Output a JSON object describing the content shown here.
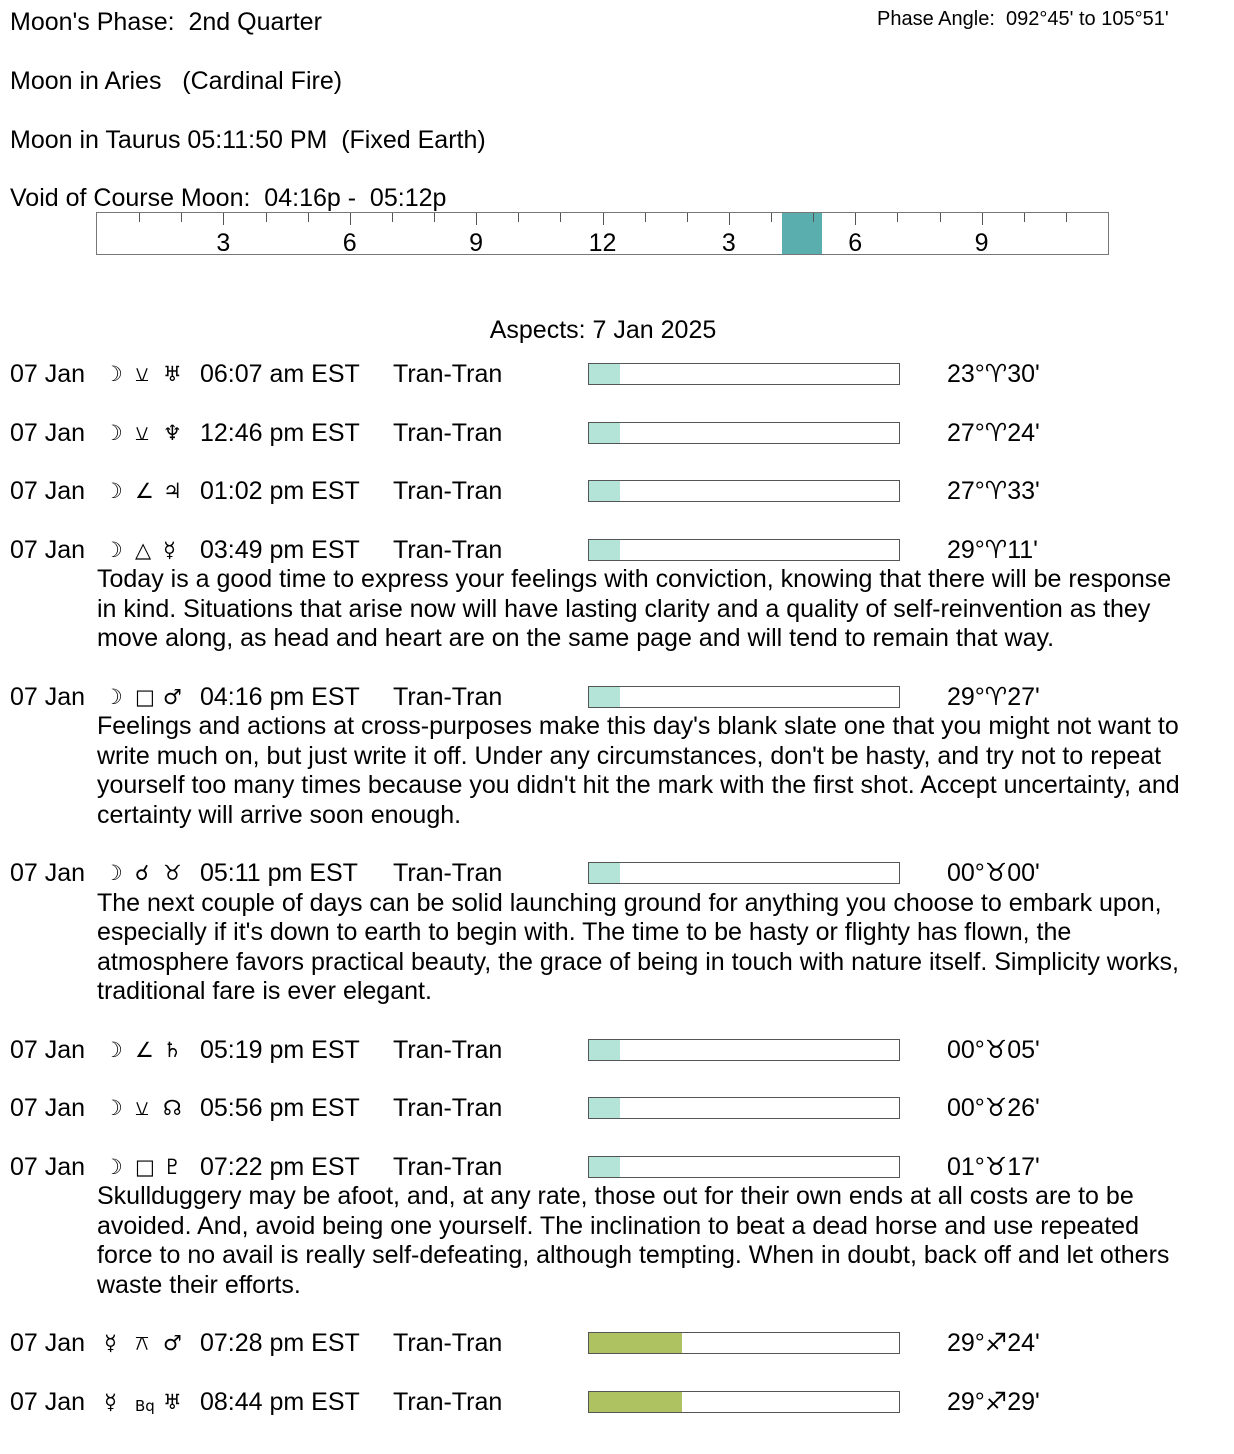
{
  "header": {
    "moon_phase": "Moon's Phase:  2nd Quarter",
    "phase_angle": "Phase Angle:  092°45' to 105°51'",
    "moon_sign_1": "Moon in Aries   (Cardinal Fire)",
    "moon_sign_2": "Moon in Taurus 05:11:50 PM  (Fixed Earth)",
    "void_of_course": "Void of Course Moon:  04:16p -  05:12p"
  },
  "timeline": {
    "hours": 24,
    "labels": [
      "3",
      "6",
      "9",
      "12",
      "3",
      "6",
      "9"
    ],
    "label_hours": [
      3,
      6,
      9,
      12,
      15,
      18,
      21
    ],
    "void_start_hour": 16.27,
    "void_end_hour": 17.2,
    "highlight_color": "#5aaeae"
  },
  "aspects_title": "Aspects: 7 Jan 2025",
  "colors": {
    "moon_bar": "#b4e4d7",
    "mercury_bar": "#aec262"
  },
  "aspects": [
    {
      "date": "07 Jan",
      "p1": "☽",
      "aspect": "⚺",
      "p2": "♅",
      "time": "06:07 am EST",
      "type": "Tran-Tran",
      "strength": 0.1,
      "bar": "moon_bar",
      "pos": "23°♈︎30'",
      "desc": ""
    },
    {
      "date": "07 Jan",
      "p1": "☽",
      "aspect": "⚺",
      "p2": "♆",
      "time": "12:46 pm EST",
      "type": "Tran-Tran",
      "strength": 0.1,
      "bar": "moon_bar",
      "pos": "27°♈︎24'",
      "desc": ""
    },
    {
      "date": "07 Jan",
      "p1": "☽",
      "aspect": "∠",
      "p2": "♃",
      "time": "01:02 pm EST",
      "type": "Tran-Tran",
      "strength": 0.1,
      "bar": "moon_bar",
      "pos": "27°♈︎33'",
      "desc": ""
    },
    {
      "date": "07 Jan",
      "p1": "☽",
      "aspect": "△",
      "p2": "☿",
      "time": "03:49 pm EST",
      "type": "Tran-Tran",
      "strength": 0.1,
      "bar": "moon_bar",
      "pos": "29°♈︎11'",
      "desc": "Today is a good time to express your feelings with conviction, knowing that there will be response in kind. Situations that arise now will have lasting clarity and a quality of self-reinvention as they move along, as head and heart are on the same page and will tend to remain that way."
    },
    {
      "date": "07 Jan",
      "p1": "☽",
      "aspect": "□",
      "p2": "♂",
      "time": "04:16 pm EST",
      "type": "Tran-Tran",
      "strength": 0.1,
      "bar": "moon_bar",
      "pos": "29°♈︎27'",
      "desc": "Feelings and actions at cross-purposes make this day's blank slate one that you might not want to write much on, but just write it off. Under any circumstances, don't be hasty, and try not to repeat yourself too many times because you didn't hit the mark with the first shot. Accept uncertainty, and certainty will arrive soon enough."
    },
    {
      "date": "07 Jan",
      "p1": "☽",
      "aspect": "☌",
      "p2": "♉︎",
      "time": "05:11 pm EST",
      "type": "Tran-Tran",
      "strength": 0.1,
      "bar": "moon_bar",
      "pos": "00°♉︎00'",
      "desc": "The next couple of days can be solid launching ground for anything you choose to embark upon, especially if it's down to earth to begin with. The time to be hasty or flighty has flown, the atmosphere favors practical beauty, the grace of being in touch with nature itself. Simplicity works, traditional fare is ever elegant."
    },
    {
      "date": "07 Jan",
      "p1": "☽",
      "aspect": "∠",
      "p2": "♄",
      "time": "05:19 pm EST",
      "type": "Tran-Tran",
      "strength": 0.1,
      "bar": "moon_bar",
      "pos": "00°♉︎05'",
      "desc": ""
    },
    {
      "date": "07 Jan",
      "p1": "☽",
      "aspect": "⚺",
      "p2": "☊",
      "time": "05:56 pm EST",
      "type": "Tran-Tran",
      "strength": 0.1,
      "bar": "moon_bar",
      "pos": "00°♉︎26'",
      "desc": ""
    },
    {
      "date": "07 Jan",
      "p1": "☽",
      "aspect": "□",
      "p2": "♇",
      "time": "07:22 pm EST",
      "type": "Tran-Tran",
      "strength": 0.1,
      "bar": "moon_bar",
      "pos": "01°♉︎17'",
      "desc": "Skullduggery may be afoot, and, at any rate, those out for their own ends at all costs are to be avoided. And, avoid being one yourself. The inclination to beat a dead horse and use repeated force to no avail is really self-defeating, although tempting. When in doubt, back off and let others waste their efforts."
    },
    {
      "date": "07 Jan",
      "p1": "☿",
      "aspect": "⚻",
      "p2": "♂",
      "time": "07:28 pm EST",
      "type": "Tran-Tran",
      "strength": 0.3,
      "bar": "mercury_bar",
      "pos": "29°♐︎24'",
      "desc": ""
    },
    {
      "date": "07 Jan",
      "p1": "☿",
      "aspect": "Bq",
      "p2": "♅",
      "time": "08:44 pm EST",
      "type": "Tran-Tran",
      "strength": 0.3,
      "bar": "mercury_bar",
      "pos": "29°♐︎29'",
      "desc": ""
    }
  ]
}
